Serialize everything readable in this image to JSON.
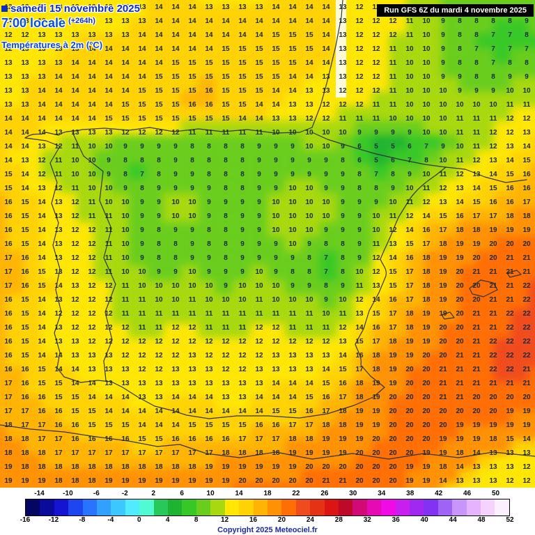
{
  "header": {
    "date_line": "samedi 15 novembre 2025",
    "time_line": "7:00 locale",
    "forecast_offset": "(+264h)",
    "variable_label": "Températures à 2m (°C)",
    "run_info": "Run GFS 6Z du mardi 4 novembre 2025"
  },
  "footer": {
    "copyright": "Copyright 2025 Meteociel.fr"
  },
  "colors": {
    "title_blue": "#0a2fc8",
    "run_box_bg": "#000000",
    "run_box_text": "#ffffff",
    "value_text": "#16293c",
    "coastline": "#333333"
  },
  "chart_data": {
    "type": "heatmap",
    "title": "Températures à 2m (°C)",
    "model_run": "Run GFS 6Z du mardi 4 novembre 2025",
    "valid_time": "samedi 15 novembre 2025 7:00 locale (+264h)",
    "region": "Iberian Peninsula, S France, Balearic Islands, N Africa",
    "unit": "°C",
    "grid_cols": 32,
    "grid_rows": 35,
    "values": [
      [
        13,
        13,
        13,
        13,
        13,
        13,
        13,
        13,
        13,
        14,
        14,
        14,
        13,
        13,
        13,
        13,
        14,
        14,
        14,
        14,
        13,
        12,
        12,
        12,
        11,
        10,
        9,
        8,
        8,
        9,
        8,
        8
      ],
      [
        12,
        13,
        13,
        13,
        13,
        13,
        13,
        13,
        13,
        14,
        14,
        14,
        14,
        14,
        14,
        14,
        14,
        14,
        14,
        14,
        13,
        12,
        12,
        12,
        11,
        10,
        9,
        8,
        8,
        8,
        8,
        9
      ],
      [
        12,
        12,
        13,
        13,
        13,
        13,
        13,
        13,
        14,
        14,
        14,
        14,
        14,
        14,
        14,
        14,
        15,
        15,
        15,
        14,
        13,
        12,
        12,
        12,
        11,
        10,
        9,
        8,
        8,
        7,
        7,
        8
      ],
      [
        12,
        13,
        13,
        13,
        13,
        14,
        14,
        14,
        14,
        14,
        14,
        14,
        14,
        15,
        15,
        15,
        15,
        15,
        15,
        14,
        13,
        12,
        12,
        11,
        10,
        10,
        9,
        8,
        7,
        7,
        7,
        7
      ],
      [
        13,
        13,
        13,
        13,
        14,
        14,
        14,
        14,
        14,
        14,
        15,
        15,
        15,
        15,
        15,
        15,
        15,
        15,
        14,
        14,
        13,
        12,
        12,
        11,
        10,
        10,
        9,
        8,
        8,
        7,
        8,
        8
      ],
      [
        13,
        13,
        13,
        14,
        14,
        14,
        14,
        14,
        14,
        15,
        15,
        15,
        15,
        15,
        15,
        15,
        15,
        14,
        14,
        13,
        13,
        12,
        12,
        11,
        10,
        10,
        9,
        9,
        8,
        8,
        9,
        9
      ],
      [
        13,
        13,
        14,
        14,
        14,
        14,
        14,
        14,
        15,
        15,
        15,
        15,
        16,
        15,
        15,
        15,
        14,
        14,
        13,
        13,
        12,
        12,
        12,
        11,
        10,
        10,
        10,
        9,
        9,
        9,
        10,
        10
      ],
      [
        13,
        13,
        14,
        14,
        14,
        14,
        14,
        15,
        15,
        15,
        15,
        16,
        16,
        15,
        15,
        14,
        14,
        13,
        13,
        12,
        12,
        12,
        11,
        11,
        10,
        10,
        10,
        10,
        10,
        10,
        11,
        11
      ],
      [
        14,
        14,
        14,
        14,
        14,
        14,
        15,
        15,
        15,
        15,
        15,
        15,
        15,
        15,
        14,
        14,
        13,
        13,
        12,
        12,
        11,
        11,
        11,
        10,
        10,
        10,
        10,
        11,
        11,
        11,
        12,
        12
      ],
      [
        14,
        14,
        14,
        13,
        13,
        13,
        13,
        12,
        12,
        12,
        12,
        11,
        11,
        11,
        11,
        11,
        10,
        10,
        10,
        10,
        10,
        9,
        9,
        9,
        9,
        10,
        10,
        11,
        11,
        12,
        12,
        13
      ],
      [
        14,
        14,
        13,
        12,
        11,
        10,
        10,
        9,
        9,
        9,
        9,
        8,
        8,
        8,
        8,
        9,
        9,
        9,
        10,
        10,
        9,
        6,
        5,
        5,
        6,
        7,
        9,
        10,
        11,
        12,
        13,
        14
      ],
      [
        14,
        13,
        12,
        11,
        10,
        10,
        9,
        8,
        8,
        8,
        9,
        8,
        8,
        8,
        8,
        9,
        9,
        9,
        9,
        9,
        8,
        6,
        5,
        6,
        7,
        8,
        10,
        11,
        12,
        13,
        14,
        15
      ],
      [
        15,
        14,
        12,
        11,
        10,
        10,
        9,
        8,
        7,
        8,
        9,
        9,
        8,
        8,
        8,
        9,
        9,
        9,
        9,
        9,
        9,
        8,
        7,
        8,
        9,
        10,
        11,
        12,
        13,
        14,
        15,
        16
      ],
      [
        15,
        14,
        13,
        12,
        11,
        10,
        10,
        9,
        8,
        9,
        9,
        9,
        9,
        8,
        8,
        9,
        9,
        10,
        10,
        9,
        9,
        8,
        8,
        9,
        10,
        11,
        12,
        13,
        14,
        15,
        16,
        16
      ],
      [
        16,
        15,
        14,
        13,
        12,
        11,
        10,
        10,
        9,
        9,
        10,
        10,
        9,
        9,
        9,
        9,
        10,
        10,
        10,
        10,
        9,
        9,
        9,
        10,
        11,
        12,
        13,
        14,
        15,
        16,
        16,
        17
      ],
      [
        16,
        15,
        14,
        13,
        12,
        11,
        11,
        10,
        9,
        9,
        10,
        10,
        9,
        8,
        9,
        9,
        10,
        10,
        10,
        10,
        9,
        9,
        10,
        11,
        12,
        14,
        15,
        16,
        17,
        17,
        18,
        18
      ],
      [
        16,
        15,
        14,
        13,
        12,
        12,
        11,
        10,
        9,
        8,
        9,
        9,
        8,
        8,
        9,
        9,
        10,
        10,
        10,
        9,
        9,
        9,
        10,
        12,
        14,
        16,
        17,
        18,
        18,
        19,
        19,
        19
      ],
      [
        16,
        15,
        14,
        13,
        12,
        12,
        11,
        10,
        9,
        8,
        8,
        9,
        8,
        8,
        9,
        9,
        9,
        10,
        9,
        8,
        8,
        9,
        11,
        13,
        15,
        17,
        18,
        19,
        19,
        20,
        20,
        20
      ],
      [
        17,
        16,
        14,
        13,
        12,
        12,
        11,
        10,
        9,
        8,
        8,
        9,
        9,
        8,
        9,
        9,
        9,
        9,
        8,
        7,
        8,
        9,
        12,
        14,
        16,
        18,
        19,
        19,
        20,
        20,
        21,
        21
      ],
      [
        17,
        16,
        15,
        13,
        12,
        12,
        11,
        10,
        10,
        9,
        9,
        10,
        9,
        9,
        9,
        10,
        9,
        8,
        8,
        7,
        8,
        10,
        12,
        15,
        17,
        18,
        19,
        20,
        21,
        21,
        21,
        21
      ],
      [
        17,
        16,
        15,
        14,
        13,
        12,
        12,
        11,
        10,
        10,
        10,
        10,
        10,
        9,
        10,
        10,
        10,
        9,
        9,
        8,
        9,
        11,
        13,
        15,
        17,
        18,
        19,
        20,
        20,
        21,
        21,
        22
      ],
      [
        16,
        15,
        14,
        13,
        12,
        12,
        12,
        11,
        11,
        10,
        10,
        11,
        10,
        10,
        10,
        11,
        10,
        10,
        10,
        9,
        10,
        12,
        14,
        16,
        17,
        18,
        19,
        20,
        20,
        21,
        21,
        22
      ],
      [
        16,
        15,
        14,
        12,
        12,
        12,
        12,
        11,
        11,
        11,
        11,
        11,
        11,
        11,
        11,
        11,
        11,
        11,
        11,
        10,
        11,
        13,
        15,
        17,
        18,
        19,
        19,
        20,
        21,
        21,
        22,
        22
      ],
      [
        16,
        15,
        14,
        13,
        12,
        12,
        12,
        12,
        11,
        11,
        12,
        12,
        11,
        11,
        11,
        12,
        12,
        11,
        11,
        11,
        12,
        14,
        16,
        17,
        18,
        19,
        20,
        20,
        21,
        21,
        22,
        22
      ],
      [
        16,
        15,
        14,
        13,
        13,
        12,
        12,
        12,
        12,
        12,
        12,
        12,
        12,
        12,
        12,
        12,
        12,
        12,
        12,
        12,
        13,
        15,
        17,
        18,
        19,
        19,
        20,
        20,
        21,
        22,
        22,
        22
      ],
      [
        16,
        15,
        14,
        14,
        13,
        13,
        13,
        12,
        12,
        12,
        12,
        13,
        12,
        12,
        12,
        12,
        13,
        13,
        13,
        13,
        14,
        16,
        18,
        19,
        19,
        20,
        20,
        21,
        21,
        22,
        22,
        22
      ],
      [
        16,
        16,
        15,
        14,
        14,
        13,
        13,
        13,
        12,
        12,
        13,
        13,
        13,
        12,
        12,
        13,
        13,
        13,
        13,
        14,
        15,
        17,
        18,
        19,
        20,
        20,
        21,
        21,
        21,
        22,
        22,
        21
      ],
      [
        17,
        16,
        15,
        15,
        14,
        14,
        13,
        13,
        13,
        13,
        13,
        13,
        13,
        13,
        13,
        13,
        14,
        14,
        14,
        15,
        16,
        18,
        19,
        19,
        20,
        20,
        21,
        21,
        21,
        21,
        21,
        21
      ],
      [
        17,
        16,
        16,
        15,
        15,
        14,
        14,
        14,
        13,
        13,
        14,
        14,
        14,
        13,
        13,
        14,
        14,
        14,
        15,
        16,
        17,
        18,
        19,
        20,
        20,
        20,
        21,
        21,
        20,
        20,
        20,
        20
      ],
      [
        17,
        17,
        16,
        16,
        15,
        15,
        14,
        14,
        14,
        14,
        14,
        14,
        14,
        14,
        14,
        14,
        15,
        15,
        16,
        17,
        18,
        19,
        19,
        20,
        20,
        20,
        20,
        20,
        20,
        20,
        19,
        19
      ],
      [
        18,
        17,
        17,
        16,
        16,
        15,
        15,
        15,
        14,
        14,
        14,
        15,
        15,
        15,
        15,
        16,
        16,
        17,
        17,
        18,
        18,
        19,
        19,
        20,
        20,
        20,
        20,
        19,
        19,
        19,
        19,
        19
      ],
      [
        18,
        18,
        17,
        17,
        16,
        16,
        16,
        16,
        15,
        15,
        16,
        16,
        16,
        16,
        17,
        17,
        17,
        18,
        18,
        19,
        19,
        19,
        20,
        20,
        20,
        20,
        19,
        19,
        19,
        18,
        15,
        14
      ],
      [
        18,
        18,
        18,
        17,
        17,
        17,
        17,
        17,
        17,
        17,
        17,
        17,
        17,
        18,
        18,
        18,
        18,
        19,
        19,
        19,
        19,
        20,
        20,
        20,
        20,
        19,
        19,
        18,
        14,
        13,
        13,
        13
      ],
      [
        19,
        18,
        18,
        18,
        18,
        18,
        18,
        18,
        18,
        18,
        18,
        18,
        19,
        19,
        19,
        19,
        19,
        19,
        20,
        20,
        20,
        20,
        20,
        20,
        19,
        19,
        18,
        14,
        13,
        13,
        13,
        12
      ],
      [
        19,
        19,
        19,
        18,
        18,
        18,
        19,
        19,
        19,
        19,
        19,
        19,
        19,
        19,
        20,
        20,
        20,
        20,
        20,
        21,
        21,
        20,
        20,
        20,
        19,
        19,
        14,
        13,
        13,
        13,
        12,
        12
      ]
    ],
    "color_scale": {
      "min": -16,
      "max": 52,
      "step": 2,
      "stops": [
        [
          -16,
          "#050564"
        ],
        [
          -14,
          "#0a0a9b"
        ],
        [
          -12,
          "#1414d2"
        ],
        [
          -10,
          "#1e46f0"
        ],
        [
          -8,
          "#2873ff"
        ],
        [
          -6,
          "#32a0ff"
        ],
        [
          -4,
          "#3cc8ff"
        ],
        [
          -2,
          "#50ebff"
        ],
        [
          0,
          "#50fad2"
        ],
        [
          2,
          "#28c85a"
        ],
        [
          4,
          "#1eb432"
        ],
        [
          6,
          "#37c828"
        ],
        [
          8,
          "#69cd1e"
        ],
        [
          10,
          "#a8d80f"
        ],
        [
          12,
          "#ffe605"
        ],
        [
          14,
          "#ffd205"
        ],
        [
          16,
          "#ffb405"
        ],
        [
          18,
          "#ff9105"
        ],
        [
          20,
          "#ff6e05"
        ],
        [
          22,
          "#f04b1e"
        ],
        [
          24,
          "#e63214"
        ],
        [
          26,
          "#dc1414"
        ],
        [
          28,
          "#be0a28"
        ],
        [
          30,
          "#d20a78"
        ],
        [
          32,
          "#e60ab4"
        ],
        [
          34,
          "#f00ae6"
        ],
        [
          36,
          "#c81ef0"
        ],
        [
          38,
          "#a028f0"
        ],
        [
          40,
          "#8232f0"
        ],
        [
          42,
          "#a064f5"
        ],
        [
          44,
          "#c896fa"
        ],
        [
          46,
          "#e6b4ff"
        ],
        [
          48,
          "#f5d2ff"
        ],
        [
          50,
          "#fcf0ff"
        ],
        [
          52,
          "#ffffff"
        ]
      ]
    },
    "colorbar": {
      "labels_top": [
        "-14",
        "-10",
        "-6",
        "-2",
        "2",
        "6",
        "10",
        "14",
        "18",
        "22",
        "26",
        "30",
        "34",
        "38",
        "42",
        "46",
        "50"
      ],
      "labels_bottom": [
        "-16",
        "-12",
        "-8",
        "-4",
        "0",
        "4",
        "8",
        "12",
        "16",
        "20",
        "24",
        "28",
        "32",
        "36",
        "40",
        "44",
        "48",
        "52"
      ]
    }
  }
}
